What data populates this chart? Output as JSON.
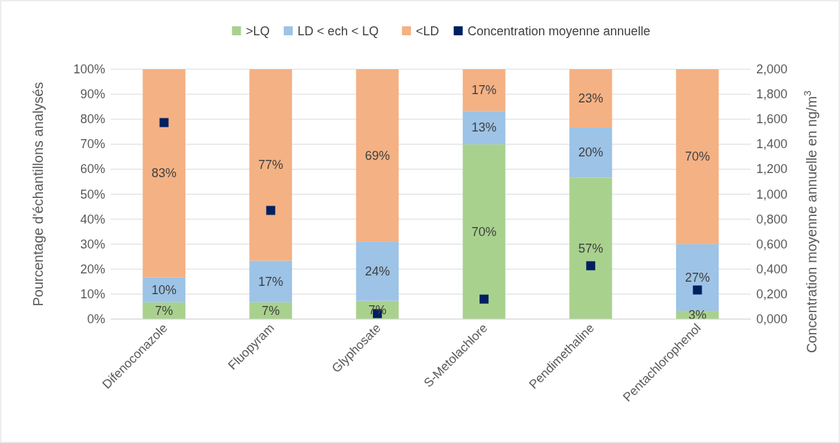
{
  "chart_data": {
    "type": "bar",
    "stacked": true,
    "categories": [
      "Difenoconazole",
      "Fluopyram",
      "Glyphosate",
      "S-Metolachlore",
      "Pendimethaline",
      "Pentachlorophenol"
    ],
    "series": [
      {
        "name": ">LQ",
        "color": "#a9d18e",
        "values": [
          6.7,
          6.7,
          7.3,
          70,
          56.7,
          3.3
        ],
        "value_labels": [
          "7%",
          "7%",
          "7%",
          "70%",
          "57%",
          "3%"
        ]
      },
      {
        "name": "LD < ech < LQ",
        "color": "#9dc3e6",
        "values": [
          10,
          16.7,
          23.7,
          13.3,
          20,
          26.7
        ],
        "value_labels": [
          "10%",
          "17%",
          "24%",
          "13%",
          "20%",
          "27%"
        ]
      },
      {
        "name": "<LD",
        "color": "#f4b183",
        "values": [
          83.3,
          76.6,
          69,
          16.7,
          23.3,
          70
        ],
        "value_labels": [
          "83%",
          "77%",
          "69%",
          "17%",
          "23%",
          "70%"
        ]
      },
      {
        "name": "Concentration moyenne annuelle",
        "type": "scatter",
        "axis": "y2",
        "color": "#002060",
        "values": [
          1.573,
          0.87,
          0.044,
          0.16,
          0.427,
          0.233
        ]
      }
    ],
    "ylabel": "Pourcentage d'échantillons analysés",
    "y2label": "Concentration moyenne annuelle en ng/m$^{3}$",
    "ylim": [
      0,
      100
    ],
    "yticks": [
      {
        "value": 0,
        "label": "0%"
      },
      {
        "value": 10,
        "label": "10%"
      },
      {
        "value": 20,
        "label": "20%"
      },
      {
        "value": 30,
        "label": "30%"
      },
      {
        "value": 40,
        "label": "40%"
      },
      {
        "value": 50,
        "label": "50%"
      },
      {
        "value": 60,
        "label": "60%"
      },
      {
        "value": 70,
        "label": "70%"
      },
      {
        "value": 80,
        "label": "80%"
      },
      {
        "value": 90,
        "label": "90%"
      },
      {
        "value": 100,
        "label": "100%"
      }
    ],
    "y2lim": [
      0,
      2
    ],
    "y2ticks": [
      {
        "value": 0,
        "label": "0,000"
      },
      {
        "value": 0.2,
        "label": "0,200"
      },
      {
        "value": 0.4,
        "label": "0,400"
      },
      {
        "value": 0.6,
        "label": "0,600"
      },
      {
        "value": 0.8,
        "label": "0,800"
      },
      {
        "value": 1,
        "label": "1,000"
      },
      {
        "value": 1.2,
        "label": "1,200"
      },
      {
        "value": 1.4,
        "label": "1,400"
      },
      {
        "value": 1.6,
        "label": "1,600"
      },
      {
        "value": 1.8,
        "label": "1,800"
      },
      {
        "value": 2,
        "label": "2,000"
      }
    ],
    "grid": "y",
    "legend": "top",
    "marker": "square"
  }
}
